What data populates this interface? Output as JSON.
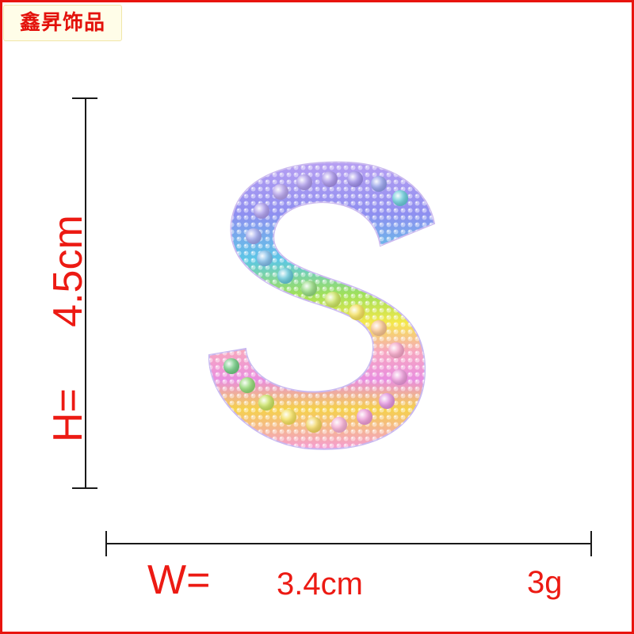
{
  "brand": {
    "name": "鑫昇饰品"
  },
  "dimensions": {
    "height_label": "H=",
    "height_value": "4.5cm",
    "width_label": "W=",
    "width_value": "3.4cm",
    "weight": "3g"
  },
  "product": {
    "icon": "rainbow-rhinestone-letter-s-icon"
  },
  "colors": {
    "accent": "#ec1a13",
    "border": "#e8140f"
  }
}
